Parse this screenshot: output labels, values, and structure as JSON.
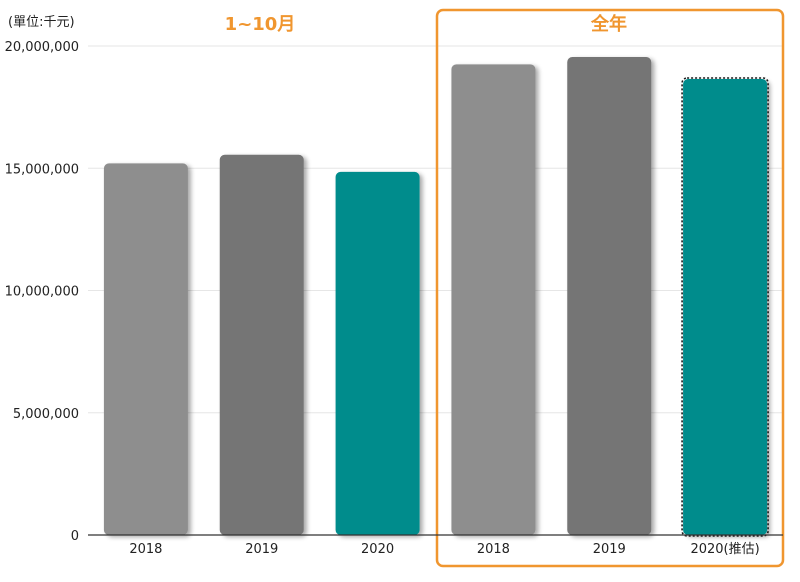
{
  "chart_data": {
    "type": "bar",
    "unit_label": "(單位:千元)",
    "groups": [
      {
        "label": "1~10月",
        "highlighted": false
      },
      {
        "label": "全年",
        "highlighted": true
      }
    ],
    "categories": [
      "2018",
      "2019",
      "2020",
      "2018",
      "2019",
      "2020(推估)"
    ],
    "group_index": [
      0,
      0,
      0,
      1,
      1,
      1
    ],
    "values": [
      15200000,
      15550000,
      14850000,
      19250000,
      19550000,
      18650000
    ],
    "estimated": [
      false,
      false,
      false,
      false,
      false,
      true
    ],
    "bar_colors": [
      "#8e8e8e",
      "#757575",
      "#008c8c",
      "#8e8e8e",
      "#757575",
      "#008c8c"
    ],
    "ylim": [
      0,
      20000000
    ],
    "yticks": [
      0,
      5000000,
      10000000,
      15000000,
      20000000
    ],
    "ytick_labels": [
      "0",
      "5,000,000",
      "10,000,000",
      "15,000,000",
      "20,000,000"
    ],
    "grid": true,
    "colors": {
      "accent": "#f0962f",
      "axis": "#333333",
      "grid": "#e6e6e6"
    }
  }
}
